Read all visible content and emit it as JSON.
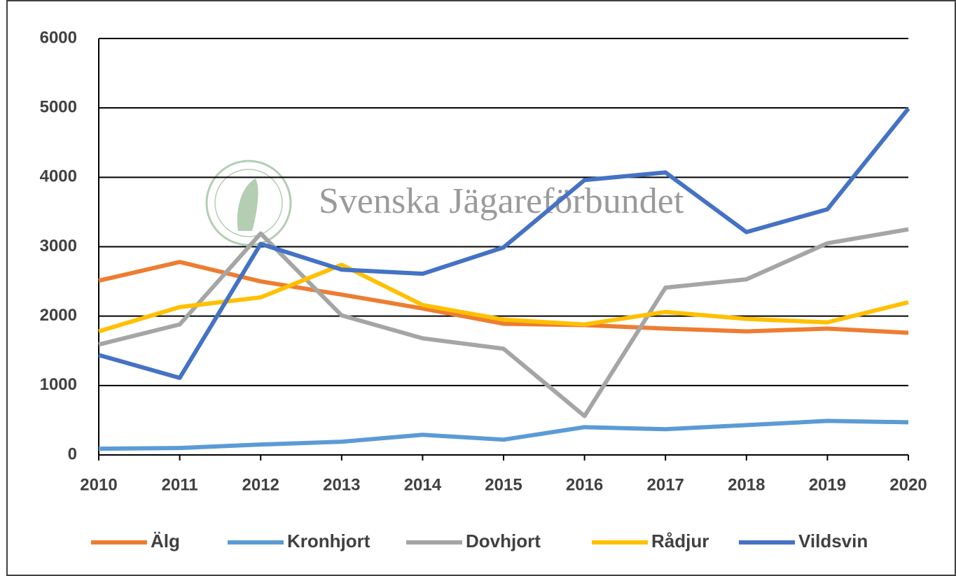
{
  "chart_data": {
    "type": "line",
    "annotation": "Svenska Jägareförbundet",
    "categories": [
      "2010",
      "2011",
      "2012",
      "2013",
      "2014",
      "2015",
      "2016",
      "2017",
      "2018",
      "2019",
      "2020"
    ],
    "series": [
      {
        "name": "Älg",
        "color": "#ed7d31",
        "values": [
          2510,
          2780,
          2500,
          2310,
          2110,
          1890,
          1870,
          1820,
          1780,
          1820,
          1760
        ]
      },
      {
        "name": "Kronhjort",
        "color": "#5b9bd5",
        "values": [
          90,
          100,
          150,
          190,
          290,
          220,
          400,
          370,
          430,
          490,
          470
        ]
      },
      {
        "name": "Dovhjort",
        "color": "#a5a5a5",
        "values": [
          1590,
          1880,
          3190,
          2010,
          1680,
          1530,
          560,
          2410,
          2530,
          3050,
          3250
        ]
      },
      {
        "name": "Rådjur",
        "color": "#ffc000",
        "values": [
          1780,
          2130,
          2270,
          2740,
          2160,
          1950,
          1880,
          2060,
          1960,
          1910,
          2200
        ]
      },
      {
        "name": "Vildsvin",
        "color": "#4472c4",
        "values": [
          1440,
          1110,
          3040,
          2670,
          2610,
          2990,
          3960,
          4070,
          3210,
          3540,
          4990
        ]
      }
    ],
    "ylim": [
      0,
      6000
    ],
    "yticks": [
      0,
      1000,
      2000,
      3000,
      4000,
      5000,
      6000
    ],
    "grid": true,
    "legend": "bottom"
  }
}
